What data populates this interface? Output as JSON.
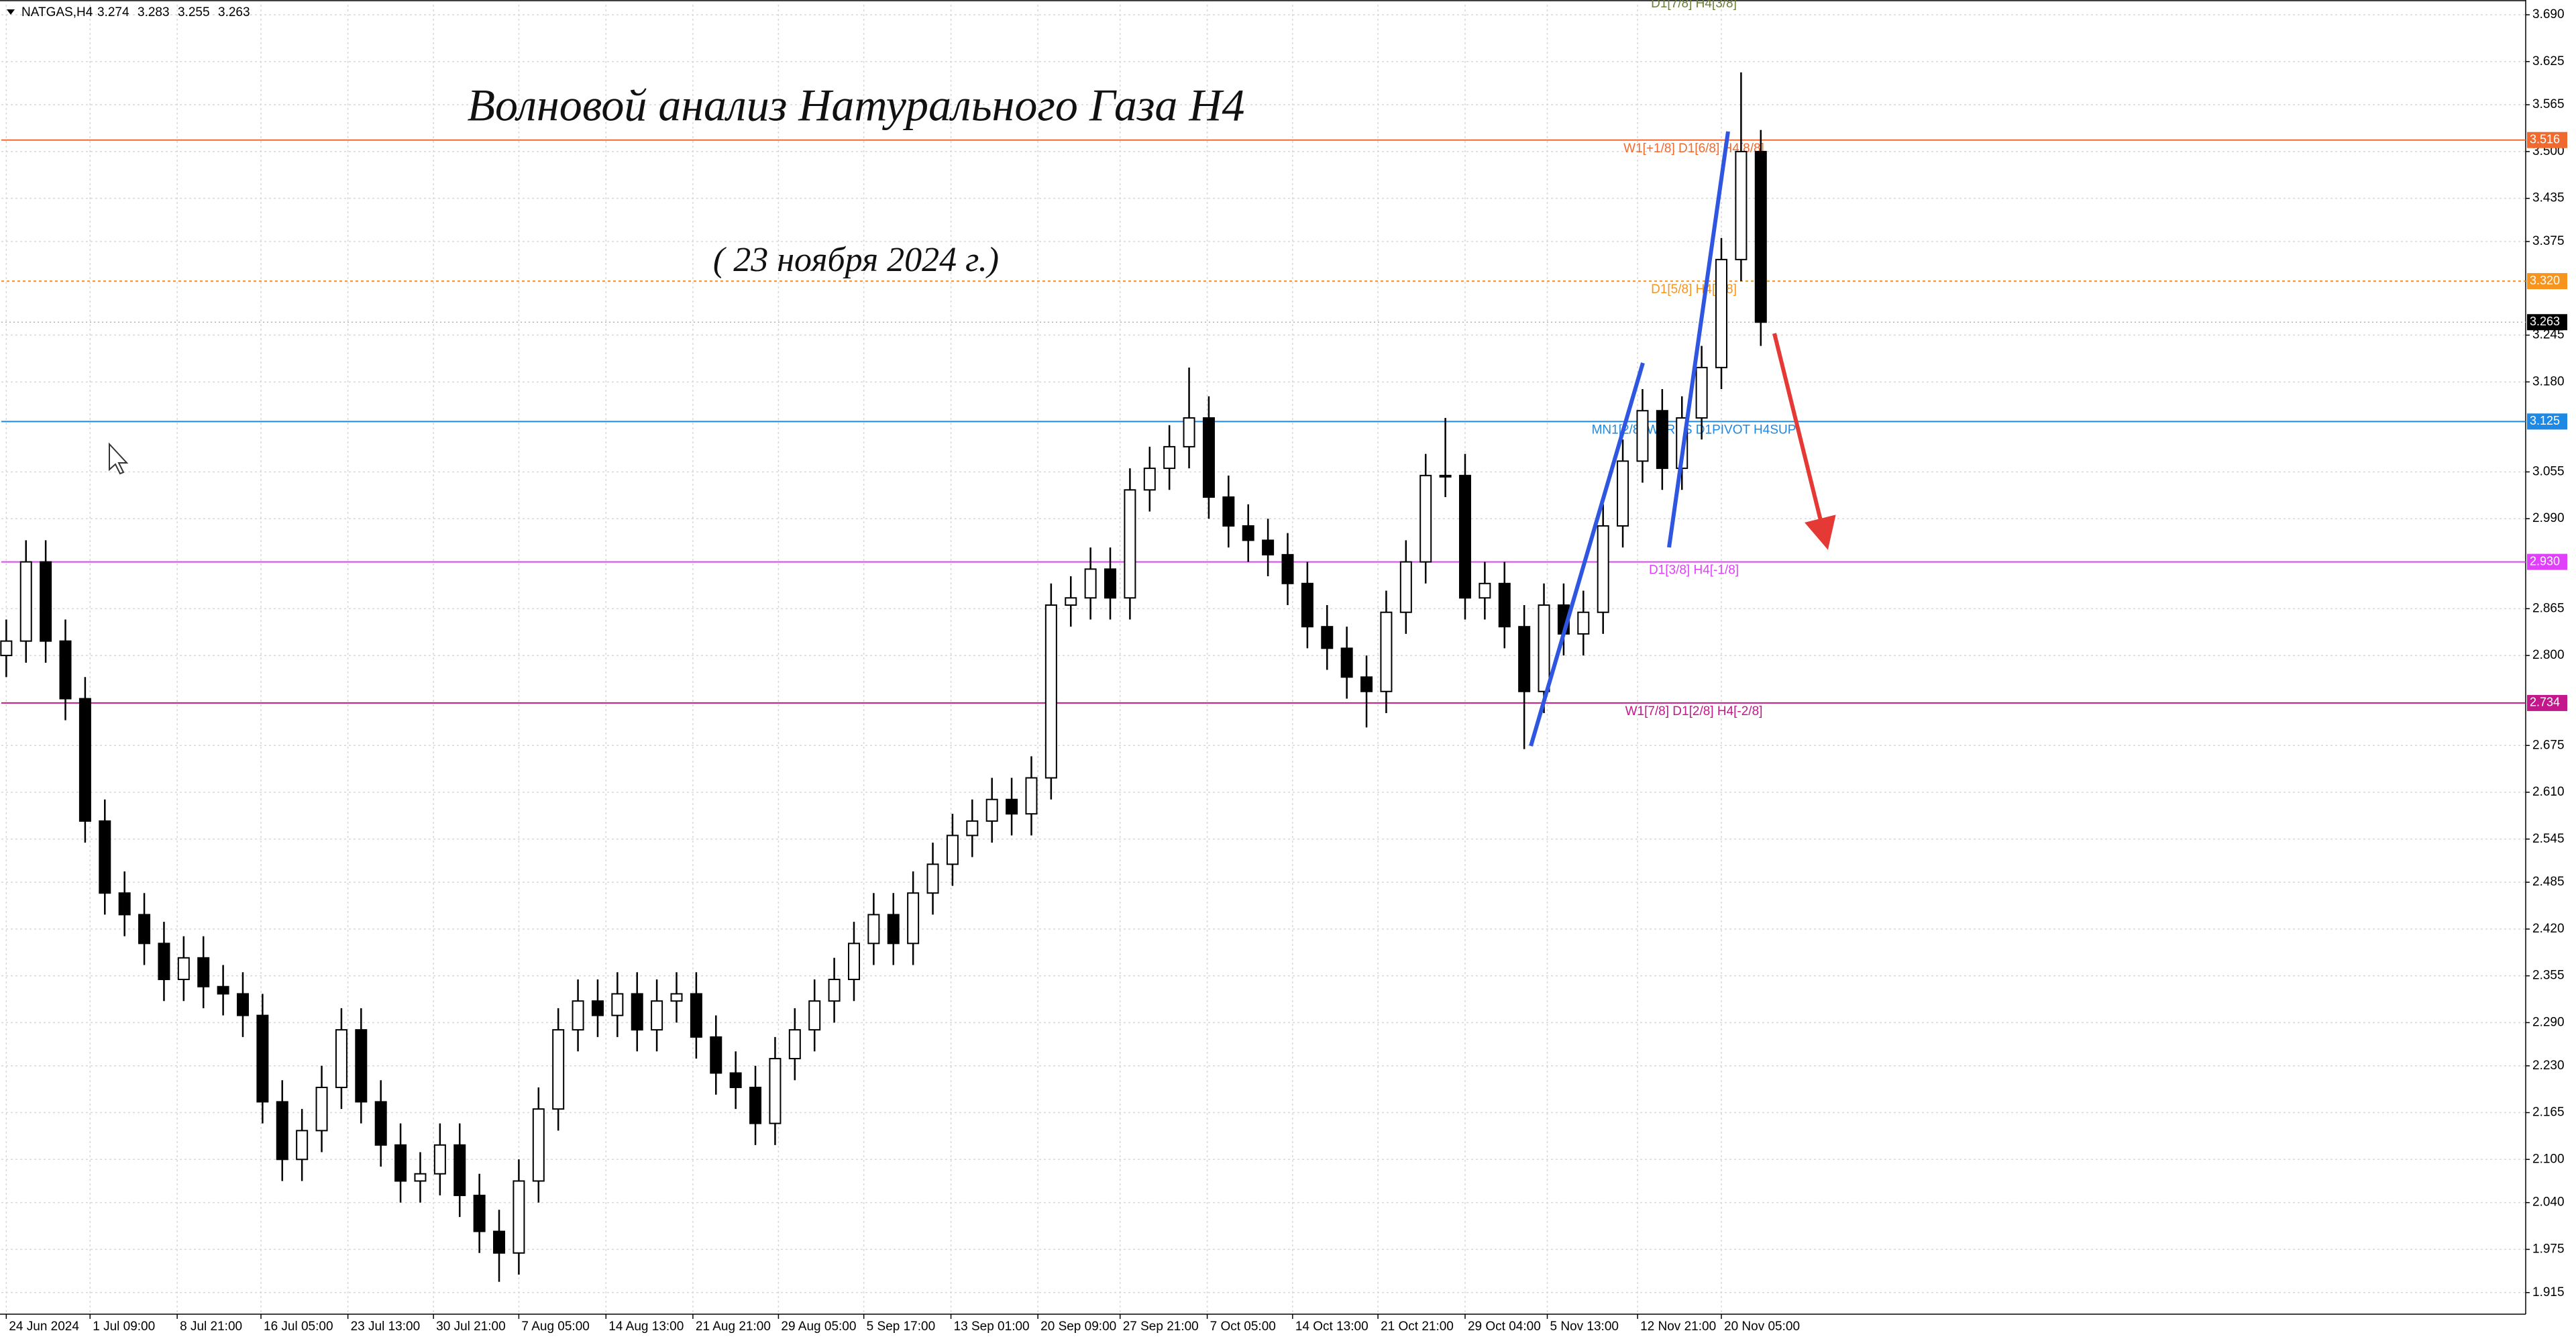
{
  "chart_data": {
    "type": "candlestick",
    "symbol": "NATGAS,H4",
    "header_ohlc": [
      3.274,
      3.283,
      3.255,
      3.263
    ],
    "title": "Волновой анализ Натурального Газа H4",
    "subtitle": "( 23 ноября 2024 г.)",
    "top_annotation": "D1[7/8] H4[3/8]",
    "color_up": "#ffffff",
    "color_down": "#000000",
    "grid": true,
    "xlim": [
      -0.25,
      127.8
    ],
    "ylim": [
      1.885,
      3.704
    ],
    "xticks": [
      {
        "value": 0,
        "label": "24 Jun 2024"
      },
      {
        "value": 4.25,
        "label": "1 Jul 09:00"
      },
      {
        "value": 8.67,
        "label": "8 Jul 21:00"
      },
      {
        "value": 12.92,
        "label": "16 Jul 05:00"
      },
      {
        "value": 17.33,
        "label": "23 Jul 13:00"
      },
      {
        "value": 21.67,
        "label": "30 Jul 21:00"
      },
      {
        "value": 26,
        "label": "7 Aug 05:00"
      },
      {
        "value": 30.42,
        "label": "14 Aug 13:00"
      },
      {
        "value": 34.83,
        "label": "21 Aug 21:00"
      },
      {
        "value": 39.17,
        "label": "29 Aug 05:00"
      },
      {
        "value": 43.5,
        "label": "5 Sep 17:00"
      },
      {
        "value": 47.92,
        "label": "13 Sep 01:00"
      },
      {
        "value": 52.33,
        "label": "20 Sep 09:00"
      },
      {
        "value": 56.5,
        "label": "27 Sep 21:00"
      },
      {
        "value": 60.92,
        "label": "7 Oct 05:00"
      },
      {
        "value": 65.25,
        "label": "14 Oct 13:00"
      },
      {
        "value": 69.58,
        "label": "21 Oct 21:00"
      },
      {
        "value": 74,
        "label": "29 Oct 04:00"
      },
      {
        "value": 78.17,
        "label": "5 Nov 13:00"
      },
      {
        "value": 82.75,
        "label": "12 Nov 21:00"
      },
      {
        "value": 87,
        "label": "20 Nov 05:00"
      }
    ],
    "yticks": [
      {
        "value": 3.69,
        "label": "3.690"
      },
      3.625,
      3.565,
      {
        "value": 3.5,
        "label": "3.500"
      },
      3.435,
      3.375,
      3.245,
      {
        "value": 3.18,
        "label": "3.180"
      },
      3.055,
      {
        "value": 2.99,
        "label": "2.990"
      },
      2.865,
      {
        "value": 2.8,
        "label": "2.800"
      },
      2.675,
      {
        "value": 2.61,
        "label": "2.610"
      },
      2.545,
      2.485,
      {
        "value": 2.42,
        "label": "2.420"
      },
      2.355,
      {
        "value": 2.29,
        "label": "2.290"
      },
      {
        "value": 2.23,
        "label": "2.230"
      },
      2.165,
      {
        "value": 2.1,
        "label": "2.100"
      },
      {
        "value": 2.04,
        "label": "2.040"
      },
      1.975,
      1.915
    ],
    "levels": [
      {
        "value": 3.516,
        "price_label": "3.516",
        "text": "W1[+1/8] D1[6/8] H4[8/8]",
        "color": "#f06a30",
        "dashed": false
      },
      {
        "value": 3.32,
        "price_label": "3.320",
        "text": "D1[5/8] H4[1/8]",
        "color": "#f7941d",
        "dashed": true
      },
      {
        "value": 3.125,
        "price_label": "3.125",
        "text": "MN1[2/8] W1RES D1PIVOT H4SUP",
        "color": "#1e88e5",
        "dashed": false
      },
      {
        "value": 2.93,
        "price_label": "2.930",
        "text": "D1[3/8] H4[-1/8]",
        "color": "#e040fb",
        "dashed": false
      },
      {
        "value": 2.734,
        "price_label": "2.734",
        "text": "W1[7/8] D1[2/8] H4[-2/8]",
        "color": "#c2188b",
        "dashed": false
      }
    ],
    "current_price": 3.263,
    "open": [
      2.8,
      2.82,
      2.93,
      2.82,
      2.74,
      2.57,
      2.47,
      2.44,
      2.4,
      2.35,
      2.38,
      2.34,
      2.33,
      2.3,
      2.18,
      2.1,
      2.14,
      2.2,
      2.28,
      2.18,
      2.12,
      2.07,
      2.08,
      2.12,
      2.05,
      2.0,
      1.97,
      2.07,
      2.17,
      2.28,
      2.32,
      2.3,
      2.33,
      2.28,
      2.32,
      2.33,
      2.27,
      2.22,
      2.2,
      2.15,
      2.24,
      2.28,
      2.32,
      2.35,
      2.4,
      2.44,
      2.4,
      2.47,
      2.51,
      2.55,
      2.57,
      2.6,
      2.58,
      2.63,
      2.87,
      2.88,
      2.92,
      2.88,
      3.03,
      3.06,
      3.09,
      3.13,
      3.02,
      2.98,
      2.96,
      2.94,
      2.9,
      2.84,
      2.81,
      2.77,
      2.75,
      2.86,
      2.93,
      3.05,
      3.05,
      2.88,
      2.9,
      2.84,
      2.75,
      2.87,
      2.83,
      2.86,
      2.98,
      3.07,
      3.14,
      3.06,
      3.13,
      3.2,
      3.35,
      3.5
    ],
    "high": [
      2.85,
      2.96,
      2.96,
      2.85,
      2.77,
      2.6,
      2.5,
      2.47,
      2.43,
      2.41,
      2.41,
      2.37,
      2.36,
      2.33,
      2.21,
      2.17,
      2.23,
      2.31,
      2.31,
      2.21,
      2.15,
      2.11,
      2.15,
      2.15,
      2.08,
      2.03,
      2.1,
      2.2,
      2.31,
      2.35,
      2.35,
      2.36,
      2.36,
      2.35,
      2.36,
      2.36,
      2.3,
      2.25,
      2.23,
      2.27,
      2.31,
      2.35,
      2.38,
      2.43,
      2.47,
      2.47,
      2.5,
      2.54,
      2.58,
      2.6,
      2.63,
      2.63,
      2.66,
      2.9,
      2.91,
      2.95,
      2.95,
      3.06,
      3.09,
      3.12,
      3.2,
      3.16,
      3.05,
      3.01,
      2.99,
      2.97,
      2.93,
      2.87,
      2.84,
      2.8,
      2.89,
      2.96,
      3.08,
      3.13,
      3.08,
      2.93,
      2.93,
      2.87,
      2.9,
      2.9,
      2.89,
      3.01,
      3.1,
      3.17,
      3.17,
      3.16,
      3.23,
      3.38,
      3.61,
      3.53
    ],
    "low": [
      2.77,
      2.79,
      2.79,
      2.71,
      2.54,
      2.44,
      2.41,
      2.37,
      2.32,
      2.32,
      2.31,
      2.3,
      2.27,
      2.15,
      2.07,
      2.07,
      2.11,
      2.17,
      2.15,
      2.09,
      2.04,
      2.04,
      2.05,
      2.02,
      1.97,
      1.93,
      1.94,
      2.04,
      2.14,
      2.25,
      2.27,
      2.27,
      2.25,
      2.25,
      2.29,
      2.24,
      2.19,
      2.17,
      2.12,
      2.12,
      2.21,
      2.25,
      2.29,
      2.32,
      2.37,
      2.37,
      2.37,
      2.44,
      2.48,
      2.52,
      2.54,
      2.55,
      2.55,
      2.6,
      2.84,
      2.85,
      2.85,
      2.85,
      3.0,
      3.03,
      3.06,
      2.99,
      2.95,
      2.93,
      2.91,
      2.87,
      2.81,
      2.78,
      2.74,
      2.7,
      2.72,
      2.83,
      2.9,
      3.02,
      2.85,
      2.85,
      2.81,
      2.67,
      2.72,
      2.8,
      2.8,
      2.83,
      2.95,
      3.04,
      3.03,
      3.03,
      3.1,
      3.17,
      3.32,
      3.23
    ],
    "close": [
      2.82,
      2.93,
      2.82,
      2.74,
      2.57,
      2.47,
      2.44,
      2.4,
      2.35,
      2.38,
      2.34,
      2.33,
      2.3,
      2.18,
      2.1,
      2.14,
      2.2,
      2.28,
      2.18,
      2.12,
      2.07,
      2.08,
      2.12,
      2.05,
      2.0,
      1.97,
      2.07,
      2.17,
      2.28,
      2.32,
      2.3,
      2.33,
      2.28,
      2.32,
      2.33,
      2.27,
      2.22,
      2.2,
      2.15,
      2.24,
      2.28,
      2.32,
      2.35,
      2.4,
      2.44,
      2.4,
      2.47,
      2.51,
      2.55,
      2.57,
      2.6,
      2.58,
      2.63,
      2.87,
      2.88,
      2.92,
      2.88,
      3.03,
      3.06,
      3.09,
      3.13,
      3.02,
      2.98,
      2.96,
      2.94,
      2.9,
      2.84,
      2.81,
      2.77,
      2.75,
      2.86,
      2.93,
      3.05,
      3.05,
      2.88,
      2.9,
      2.84,
      2.75,
      2.87,
      2.83,
      2.86,
      2.98,
      3.07,
      3.14,
      3.06,
      3.13,
      3.2,
      3.35,
      3.5,
      3.263
    ]
  }
}
